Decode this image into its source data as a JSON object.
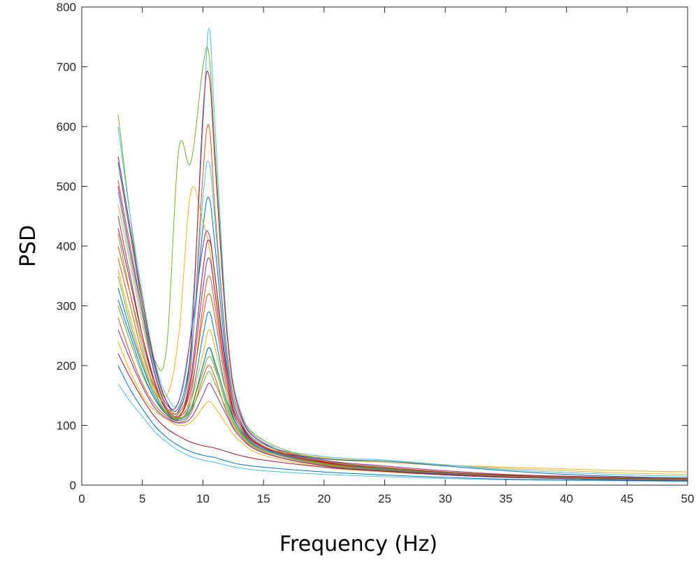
{
  "chart_data": {
    "type": "line",
    "title": "",
    "xlabel": "Frequency (Hz)",
    "ylabel": "PSD",
    "xlim": [
      0,
      50
    ],
    "ylim": [
      0,
      800
    ],
    "xticks": [
      0,
      5,
      10,
      15,
      20,
      25,
      30,
      35,
      40,
      45,
      50
    ],
    "yticks": [
      0,
      100,
      200,
      300,
      400,
      500,
      600,
      700,
      800
    ],
    "xtick_labels": [
      "0",
      "5",
      "10",
      "15",
      "20",
      "25",
      "30",
      "35",
      "40",
      "45",
      "50"
    ],
    "ytick_labels": [
      "0",
      "100",
      "200",
      "300",
      "400",
      "500",
      "600",
      "700",
      "800"
    ],
    "grid": false,
    "legend": "none",
    "x": [
      3,
      4,
      5,
      6,
      7,
      8,
      9,
      10,
      10.5,
      11,
      12,
      13,
      15,
      20,
      25,
      30,
      35,
      40,
      45,
      50
    ],
    "series": [
      {
        "color": "#0072BD",
        "values": [
          540,
          420,
          300,
          200,
          140,
          130,
          220,
          430,
          480,
          400,
          200,
          110,
          65,
          38,
          28,
          20,
          16,
          13,
          11,
          10
        ]
      },
      {
        "color": "#D95319",
        "values": [
          510,
          400,
          290,
          190,
          130,
          120,
          200,
          520,
          600,
          460,
          220,
          120,
          70,
          40,
          30,
          22,
          17,
          14,
          12,
          11
        ]
      },
      {
        "color": "#EDB120",
        "values": [
          470,
          370,
          270,
          190,
          150,
          250,
          490,
          440,
          400,
          330,
          190,
          110,
          68,
          45,
          38,
          33,
          30,
          27,
          24,
          22
        ]
      },
      {
        "color": "#7E2F8E",
        "values": [
          450,
          350,
          250,
          170,
          125,
          115,
          170,
          330,
          380,
          320,
          170,
          100,
          62,
          36,
          26,
          19,
          15,
          12,
          10,
          9
        ]
      },
      {
        "color": "#77AC30",
        "values": [
          620,
          450,
          300,
          210,
          230,
          560,
          540,
          700,
          720,
          560,
          260,
          130,
          75,
          42,
          30,
          22,
          17,
          14,
          12,
          11
        ]
      },
      {
        "color": "#4DBEEE",
        "values": [
          600,
          450,
          320,
          210,
          150,
          140,
          260,
          600,
          765,
          600,
          260,
          130,
          72,
          40,
          29,
          21,
          16,
          13,
          11,
          10
        ]
      },
      {
        "color": "#A2142F",
        "values": [
          550,
          430,
          310,
          205,
          140,
          125,
          230,
          620,
          685,
          540,
          250,
          125,
          70,
          39,
          28,
          21,
          16,
          13,
          11,
          10
        ]
      },
      {
        "color": "#0072BD",
        "values": [
          330,
          260,
          200,
          150,
          120,
          110,
          140,
          250,
          290,
          250,
          150,
          95,
          60,
          35,
          26,
          19,
          15,
          12,
          10,
          9
        ]
      },
      {
        "color": "#D95319",
        "values": [
          280,
          220,
          170,
          135,
          115,
          105,
          120,
          180,
          200,
          180,
          120,
          85,
          55,
          33,
          25,
          18,
          14,
          12,
          10,
          9
        ]
      },
      {
        "color": "#EDB120",
        "values": [
          240,
          190,
          150,
          125,
          110,
          100,
          105,
          130,
          140,
          130,
          100,
          75,
          50,
          30,
          22,
          17,
          13,
          11,
          9,
          8
        ]
      },
      {
        "color": "#7E2F8E",
        "values": [
          500,
          390,
          290,
          190,
          135,
          140,
          250,
          400,
          420,
          350,
          190,
          110,
          68,
          42,
          32,
          24,
          18,
          15,
          13,
          12
        ]
      },
      {
        "color": "#77AC30",
        "values": [
          420,
          320,
          230,
          160,
          120,
          110,
          130,
          200,
          230,
          200,
          130,
          90,
          58,
          34,
          25,
          18,
          14,
          11,
          9,
          8
        ]
      },
      {
        "color": "#4DBEEE",
        "values": [
          170,
          140,
          115,
          90,
          72,
          58,
          48,
          42,
          40,
          38,
          33,
          29,
          24,
          18,
          14,
          11,
          9,
          8,
          7,
          6
        ]
      },
      {
        "color": "#A2142F",
        "values": [
          220,
          180,
          145,
          115,
          95,
          82,
          72,
          66,
          64,
          62,
          56,
          50,
          42,
          30,
          23,
          17,
          13,
          11,
          9,
          8
        ]
      },
      {
        "color": "#0072BD",
        "values": [
          200,
          160,
          128,
          100,
          80,
          66,
          56,
          50,
          48,
          46,
          40,
          35,
          30,
          22,
          17,
          13,
          10,
          9,
          8,
          7
        ]
      },
      {
        "color": "#D95319",
        "values": [
          380,
          300,
          220,
          165,
          130,
          115,
          150,
          300,
          350,
          300,
          170,
          105,
          65,
          40,
          30,
          22,
          17,
          14,
          12,
          11
        ]
      },
      {
        "color": "#EDB120",
        "values": [
          360,
          280,
          210,
          160,
          130,
          120,
          140,
          220,
          260,
          230,
          150,
          100,
          64,
          46,
          40,
          34,
          28,
          24,
          20,
          18
        ]
      },
      {
        "color": "#7E2F8E",
        "values": [
          260,
          210,
          165,
          130,
          112,
          104,
          112,
          150,
          170,
          155,
          115,
          82,
          54,
          32,
          24,
          18,
          14,
          11,
          9,
          8
        ]
      },
      {
        "color": "#77AC30",
        "values": [
          300,
          240,
          185,
          145,
          120,
          110,
          125,
          170,
          190,
          170,
          125,
          88,
          57,
          36,
          28,
          21,
          16,
          13,
          11,
          10
        ]
      },
      {
        "color": "#4DBEEE",
        "values": [
          490,
          380,
          280,
          185,
          130,
          122,
          210,
          480,
          540,
          440,
          210,
          115,
          68,
          48,
          42,
          34,
          26,
          21,
          17,
          15
        ]
      },
      {
        "color": "#A2142F",
        "values": [
          430,
          340,
          250,
          175,
          125,
          112,
          180,
          360,
          410,
          350,
          180,
          105,
          64,
          38,
          28,
          21,
          16,
          13,
          11,
          10
        ]
      },
      {
        "color": "#0072BD",
        "values": [
          310,
          250,
          190,
          145,
          118,
          108,
          125,
          200,
          230,
          205,
          140,
          95,
          60,
          44,
          40,
          32,
          24,
          18,
          14,
          12
        ]
      },
      {
        "color": "#D95319",
        "values": [
          400,
          320,
          240,
          170,
          128,
          115,
          160,
          280,
          320,
          280,
          160,
          100,
          63,
          37,
          27,
          20,
          15,
          12,
          10,
          9
        ]
      },
      {
        "color": "#77AC30",
        "values": [
          350,
          270,
          205,
          155,
          122,
          112,
          130,
          190,
          215,
          195,
          135,
          92,
          58,
          35,
          27,
          20,
          15,
          12,
          10,
          9
        ]
      }
    ]
  }
}
